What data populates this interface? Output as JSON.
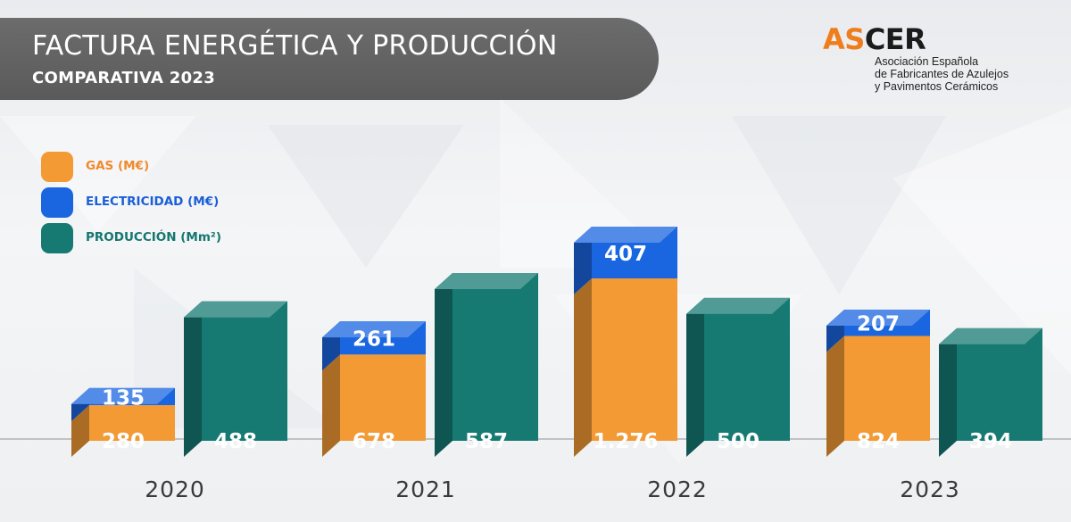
{
  "header": {
    "title": "FACTURA ENERGÉTICA Y PRODUCCIÓN",
    "subtitle": "COMPARATIVA 2023"
  },
  "logo": {
    "word_orange": "AS",
    "word_dark": "CER",
    "line1": "Asociación Española",
    "line2": "de Fabricantes de Azulejos",
    "line3": "y Pavimentos Cerámicos"
  },
  "legend": {
    "gas": "GAS (M€)",
    "electricity": "ELECTRICIDAD (M€)",
    "production": "PRODUCCIÓN (Mm²)"
  },
  "colors": {
    "gas": "#f39a35",
    "electricity": "#1a66e0",
    "production": "#167a73",
    "gas_text": "#ef8a2a",
    "electricity_text": "#1a5fd6",
    "production_text": "#157670"
  },
  "chart_data": {
    "type": "bar",
    "categories": [
      "2020",
      "2021",
      "2022",
      "2023"
    ],
    "series": [
      {
        "name": "GAS (M€)",
        "stack": "energy",
        "values": [
          280,
          678,
          1276,
          824
        ],
        "labels": [
          "280",
          "678",
          "1.276",
          "824"
        ]
      },
      {
        "name": "ELECTRICIDAD (M€)",
        "stack": "energy",
        "values": [
          135,
          261,
          407,
          207
        ],
        "labels": [
          "135",
          "261",
          "407",
          "207"
        ]
      },
      {
        "name": "PRODUCCIÓN (Mm²)",
        "stack": "production",
        "values": [
          488,
          587,
          500,
          394
        ],
        "labels": [
          "488",
          "587",
          "500",
          "394"
        ]
      }
    ],
    "title": "FACTURA ENERGÉTICA Y PRODUCCIÓN",
    "subtitle": "COMPARATIVA 2023",
    "legend_position": "top-left",
    "grid": false
  }
}
